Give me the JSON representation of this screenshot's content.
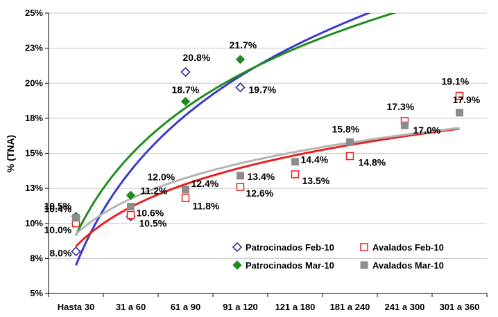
{
  "chart_data": {
    "type": "scatter",
    "title": "",
    "xlabel": "",
    "ylabel": "% (TNA)",
    "categories": [
      "Hasta 30",
      "31 a 60",
      "61 a 90",
      "91 a 120",
      "121 a 180",
      "181 a 240",
      "241 a 300",
      "301 a 360"
    ],
    "ylim": [
      5,
      25
    ],
    "y_ticks": [
      {
        "value": 5,
        "label": "5%"
      },
      {
        "value": 7.5,
        "label": "8%"
      },
      {
        "value": 10,
        "label": "10%"
      },
      {
        "value": 12.5,
        "label": "13%"
      },
      {
        "value": 15,
        "label": "15%"
      },
      {
        "value": 17.5,
        "label": "18%"
      },
      {
        "value": 20,
        "label": "20%"
      },
      {
        "value": 22.5,
        "label": "23%"
      },
      {
        "value": 25,
        "label": "25%"
      }
    ],
    "grid": "horizontal",
    "legend_position": "bottom-right",
    "series": [
      {
        "name": "Patrocinados Feb-10",
        "marker": "open-diamond",
        "color": "#1a1a8c",
        "points": [
          {
            "x": 0,
            "y": 8.0,
            "label": "8.0%"
          },
          {
            "x": 1,
            "y": 10.5,
            "label": "10.5%"
          },
          {
            "x": 2,
            "y": 20.8,
            "label": "20.8%"
          },
          {
            "x": 3,
            "y": 19.7,
            "label": "19.7%"
          }
        ]
      },
      {
        "name": "Patrocinados Mar-10",
        "marker": "filled-diamond",
        "color": "#1e8c1e",
        "points": [
          {
            "x": 0,
            "y": 10.5,
            "label": "10.5%"
          },
          {
            "x": 1,
            "y": 12.0,
            "label": "12.0%"
          },
          {
            "x": 2,
            "y": 18.7,
            "label": "18.7%"
          },
          {
            "x": 3,
            "y": 21.7,
            "label": "21.7%"
          }
        ]
      },
      {
        "name": "Avalados Feb-10",
        "marker": "open-square",
        "color": "#e82020",
        "points": [
          {
            "x": 0,
            "y": 10.0,
            "label": "10.0%"
          },
          {
            "x": 1,
            "y": 10.6,
            "label": "10.6%"
          },
          {
            "x": 2,
            "y": 11.8,
            "label": "11.8%"
          },
          {
            "x": 3,
            "y": 12.6,
            "label": "12.6%"
          },
          {
            "x": 4,
            "y": 13.5,
            "label": "13.5%"
          },
          {
            "x": 5,
            "y": 14.8,
            "label": "14.8%"
          },
          {
            "x": 6,
            "y": 17.3,
            "label": "17.3%"
          },
          {
            "x": 7,
            "y": 19.1,
            "label": "19.1%"
          }
        ]
      },
      {
        "name": "Avalados Mar-10",
        "marker": "filled-square",
        "color": "#8c8c8c",
        "points": [
          {
            "x": 0,
            "y": 10.4,
            "label": "10.4%"
          },
          {
            "x": 1,
            "y": 11.2,
            "label": "11.2%"
          },
          {
            "x": 2,
            "y": 12.4,
            "label": "12.4%"
          },
          {
            "x": 3,
            "y": 13.4,
            "label": "13.4%"
          },
          {
            "x": 4,
            "y": 14.4,
            "label": "14.4%"
          },
          {
            "x": 5,
            "y": 15.8,
            "label": "15.8%"
          },
          {
            "x": 6,
            "y": 17.0,
            "label": "17.0%"
          },
          {
            "x": 7,
            "y": 17.9,
            "label": "17.9%"
          }
        ]
      }
    ],
    "trendlines": [
      {
        "series": "Patrocinados Feb-10",
        "type": "logarithmic",
        "color": "#3a3acc"
      },
      {
        "series": "Patrocinados Mar-10",
        "type": "logarithmic",
        "color": "#1e8c1e"
      },
      {
        "series": "Avalados Feb-10",
        "type": "logarithmic",
        "color": "#e82020"
      },
      {
        "series": "Avalados Mar-10",
        "type": "logarithmic",
        "color": "#b4b4b4"
      }
    ]
  }
}
